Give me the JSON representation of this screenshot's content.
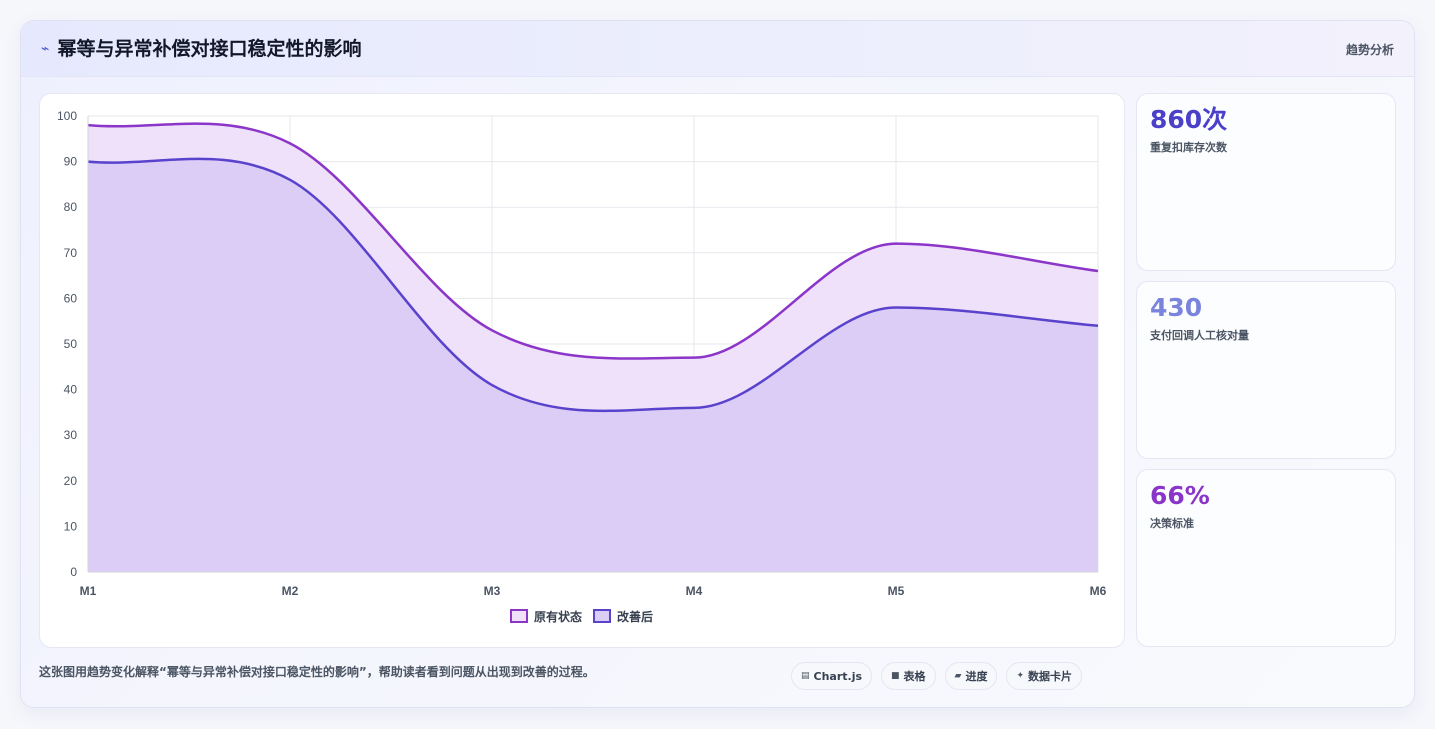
{
  "header": {
    "title": "幂等与异常补偿对接口稳定性的影响",
    "tag": "趋势分析",
    "icon": "pulse-icon"
  },
  "stats": [
    {
      "value": "860次",
      "label": "重复扣库存次数",
      "color": "#4a40c9"
    },
    {
      "value": "430",
      "label": "支付回调人工核对量",
      "color": "#7b84dc"
    },
    {
      "value": "66%",
      "label": "决策标准",
      "color": "#8a35c9"
    }
  ],
  "footer": {
    "note": "这张图用趋势变化解释“幂等与异常补偿对接口稳定性的影响”，帮助读者看到问题从出现到改善的过程。",
    "chips": [
      {
        "icon": "chart-icon",
        "glyph": "▤",
        "label": "Chart.js"
      },
      {
        "icon": "table-icon",
        "glyph": "■",
        "label": "表格"
      },
      {
        "icon": "progress-icon",
        "glyph": "▰",
        "label": "进度"
      },
      {
        "icon": "sparkle-icon",
        "glyph": "✦",
        "label": "数据卡片"
      }
    ]
  },
  "chart_data": {
    "type": "area",
    "categories": [
      "M1",
      "M2",
      "M3",
      "M4",
      "M5",
      "M6"
    ],
    "series": [
      {
        "name": "原有状态",
        "values": [
          98,
          94,
          53,
          47,
          72,
          66
        ],
        "color": "#8b35c9",
        "fill": "#efe1f9"
      },
      {
        "name": "改善后",
        "values": [
          90,
          86,
          41,
          36,
          58,
          54
        ],
        "color": "#5a43cc",
        "fill": "#dccdf7"
      }
    ],
    "ylim": [
      0,
      100
    ],
    "yticks": [
      0,
      10,
      20,
      30,
      40,
      50,
      60,
      70,
      80,
      90,
      100
    ],
    "grid": true,
    "legend": "bottom"
  }
}
